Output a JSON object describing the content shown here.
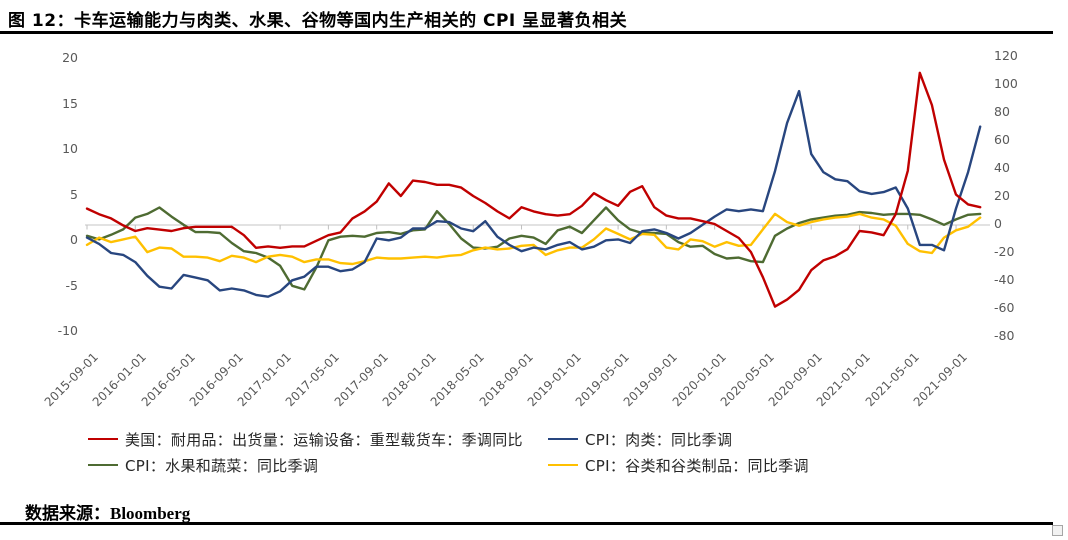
{
  "title": "图 12：卡车运输能力与肉类、水果、谷物等国内生产相关的 CPI 呈显著负相关",
  "source": {
    "label": "数据来源：",
    "value": "Bloomberg"
  },
  "chart_data": {
    "type": "line",
    "x_start": "2015-09",
    "x_frequency": "monthly",
    "x_tick_labels": [
      "2015-09-01",
      "2016-01-01",
      "2016-05-01",
      "2016-09-01",
      "2017-01-01",
      "2017-05-01",
      "2017-09-01",
      "2018-01-01",
      "2018-05-01",
      "2018-09-01",
      "2019-01-01",
      "2019-05-01",
      "2019-09-01",
      "2020-01-01",
      "2020-05-01",
      "2020-09-01",
      "2021-01-01",
      "2021-05-01",
      "2021-09-01"
    ],
    "left_axis": {
      "range": [
        -10,
        20
      ],
      "ticks": [
        20,
        15,
        10,
        5,
        0,
        -5,
        -10
      ]
    },
    "right_axis": {
      "range": [
        -80,
        120
      ],
      "ticks": [
        120,
        100,
        80,
        60,
        40,
        20,
        0,
        -20,
        -40,
        -60,
        -80
      ]
    },
    "grid": "single light horizontal baseline at right-axis zero with small downward ticks",
    "legend_position": "bottom",
    "series": [
      {
        "name": "美国：耐用品：出货量：运输设备：重型载货车：季调同比",
        "color": "#c00000",
        "axis": "right",
        "values": [
          11,
          7,
          4,
          -1,
          -5,
          -3,
          -4,
          -5,
          -3,
          -2,
          -2,
          -2,
          -2,
          -8,
          -17,
          -16,
          -17,
          -16,
          -16,
          -12,
          -8,
          -6,
          4,
          9,
          16,
          29,
          20,
          31,
          30,
          28,
          28,
          26,
          20,
          15,
          9,
          4,
          12,
          9,
          7,
          6,
          7,
          13,
          22,
          17,
          13,
          23,
          27,
          12,
          6,
          4,
          4,
          2,
          0,
          -5,
          -10,
          -20,
          -38,
          -59,
          -54,
          -47,
          -33,
          -26,
          -23,
          -18,
          -5,
          -6,
          -8,
          7,
          38,
          108,
          85,
          46,
          21,
          14,
          12
        ]
      },
      {
        "name": "CPI：肉类：同比季调",
        "color": "#28467f",
        "axis": "left",
        "values": [
          0.3,
          -0.4,
          -1.4,
          -1.6,
          -2.4,
          -3.9,
          -5.1,
          -5.3,
          -3.8,
          -4.1,
          -4.4,
          -5.5,
          -5.3,
          -5.5,
          -6.0,
          -6.2,
          -5.6,
          -4.4,
          -4.0,
          -2.9,
          -2.9,
          -3.4,
          -3.2,
          -2.4,
          0.2,
          0.0,
          0.3,
          1.3,
          1.3,
          2.1,
          2.0,
          1.3,
          1.0,
          2.1,
          0.4,
          -0.5,
          -1.2,
          -0.8,
          -1.0,
          -0.5,
          -0.2,
          -1.0,
          -0.7,
          0.0,
          0.1,
          -0.3,
          1.0,
          1.2,
          0.8,
          0.2,
          0.8,
          1.7,
          2.6,
          3.4,
          3.2,
          3.4,
          3.2,
          7.6,
          12.9,
          16.4,
          9.5,
          7.5,
          6.7,
          6.5,
          5.4,
          5.1,
          5.3,
          5.8,
          3.5,
          -0.5,
          -0.5,
          -1.1,
          3.5,
          7.5,
          12.5
        ]
      },
      {
        "name": "CPI：水果和蔬菜：同比季调",
        "color": "#4e6b32",
        "axis": "left",
        "values": [
          0.5,
          0.1,
          0.6,
          1.2,
          2.5,
          2.9,
          3.6,
          2.6,
          1.7,
          0.9,
          0.9,
          0.8,
          -0.3,
          -1.2,
          -1.4,
          -1.9,
          -2.8,
          -5.0,
          -5.4,
          -3.0,
          0.0,
          0.4,
          0.5,
          0.4,
          0.8,
          0.9,
          0.7,
          1.1,
          1.2,
          3.2,
          1.8,
          0.2,
          -0.8,
          -0.9,
          -0.7,
          0.2,
          0.5,
          0.3,
          -0.4,
          1.1,
          1.5,
          0.8,
          2.2,
          3.6,
          2.2,
          1.2,
          0.8,
          0.8,
          0.7,
          -0.2,
          -0.7,
          -0.6,
          -1.5,
          -2.0,
          -1.9,
          -2.3,
          -2.4,
          0.5,
          1.3,
          1.9,
          2.3,
          2.5,
          2.7,
          2.8,
          3.1,
          3.0,
          2.8,
          2.9,
          2.9,
          2.8,
          2.3,
          1.7,
          2.3,
          2.8,
          2.9
        ]
      },
      {
        "name": "CPI：谷类和谷类制品：同比季调",
        "color": "#ffc000",
        "axis": "left",
        "values": [
          -0.5,
          0.3,
          -0.2,
          0.1,
          0.4,
          -1.3,
          -0.8,
          -0.9,
          -1.8,
          -1.8,
          -1.9,
          -2.3,
          -1.7,
          -1.9,
          -2.4,
          -1.8,
          -1.6,
          -1.8,
          -2.4,
          -2.1,
          -2.1,
          -2.5,
          -2.6,
          -2.3,
          -1.9,
          -2.0,
          -2.0,
          -1.9,
          -1.8,
          -1.9,
          -1.7,
          -1.6,
          -1.1,
          -0.8,
          -1.0,
          -0.9,
          -0.6,
          -0.5,
          -1.6,
          -1.1,
          -0.8,
          -0.8,
          0.1,
          1.3,
          0.7,
          0.1,
          0.7,
          0.6,
          -0.8,
          -1.0,
          0.1,
          -0.1,
          -0.7,
          -0.2,
          -0.6,
          -0.5,
          1.2,
          2.9,
          2.0,
          1.6,
          2.0,
          2.3,
          2.5,
          2.6,
          2.9,
          2.5,
          2.3,
          1.6,
          -0.4,
          -1.2,
          -1.4,
          0.3,
          1.1,
          1.5,
          2.5
        ]
      }
    ]
  }
}
